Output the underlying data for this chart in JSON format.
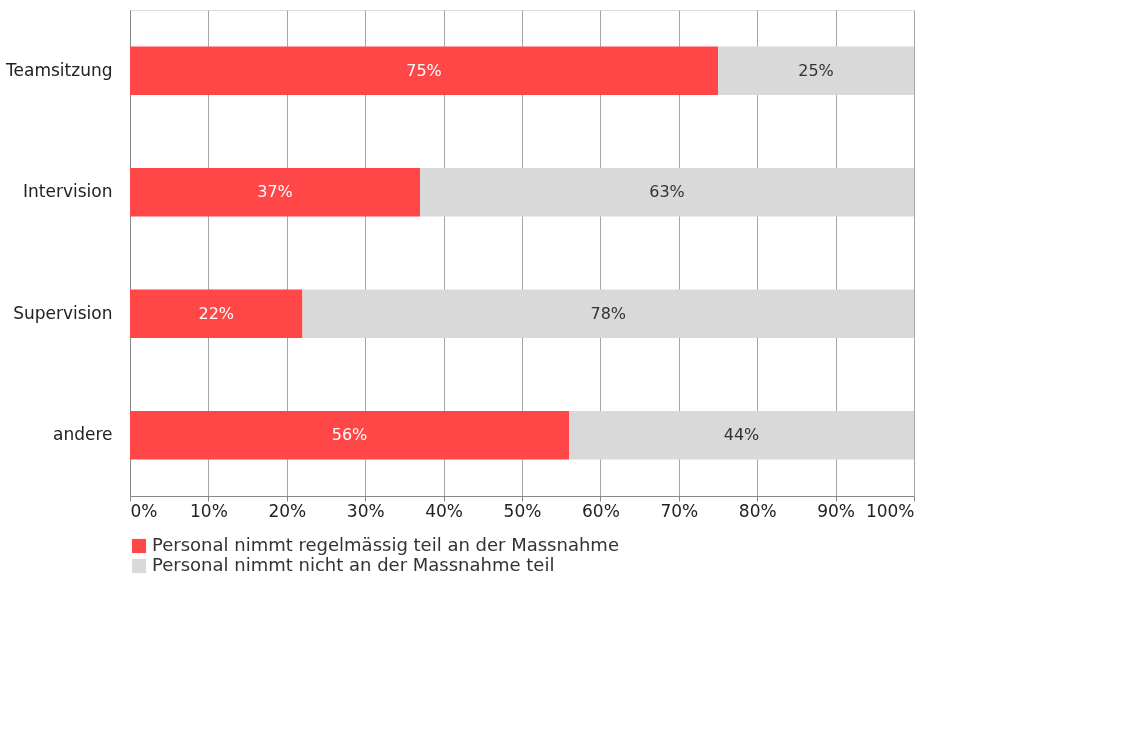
{
  "chart_data": {
    "type": "bar",
    "orientation": "horizontal",
    "stacked": true,
    "categories": [
      "Teamsitzung",
      "Intervision",
      "Supervision",
      "andere"
    ],
    "series": [
      {
        "name": "Personal nimmt regelmässig teil an der Massnahme",
        "color": "#ff4747",
        "values": [
          75,
          37,
          22,
          56
        ],
        "value_labels": [
          "75%",
          "37%",
          "22%",
          "56%"
        ]
      },
      {
        "name": "Personal nimmt nicht an der Massnahme teil",
        "color": "#d9d9d9",
        "values": [
          25,
          63,
          78,
          44
        ],
        "value_labels": [
          "25%",
          "63%",
          "78%",
          "44%"
        ]
      }
    ],
    "xlim": [
      0,
      100
    ],
    "xticks": [
      {
        "value": 0,
        "label": "0%"
      },
      {
        "value": 10,
        "label": "10%"
      },
      {
        "value": 20,
        "label": "20%"
      },
      {
        "value": 30,
        "label": "30%"
      },
      {
        "value": 40,
        "label": "40%"
      },
      {
        "value": 50,
        "label": "50%"
      },
      {
        "value": 60,
        "label": "60%"
      },
      {
        "value": 70,
        "label": "70%"
      },
      {
        "value": 80,
        "label": "80%"
      },
      {
        "value": 90,
        "label": "90%"
      },
      {
        "value": 100,
        "label": "100%"
      }
    ],
    "grid": "x",
    "legend": "bottom"
  }
}
